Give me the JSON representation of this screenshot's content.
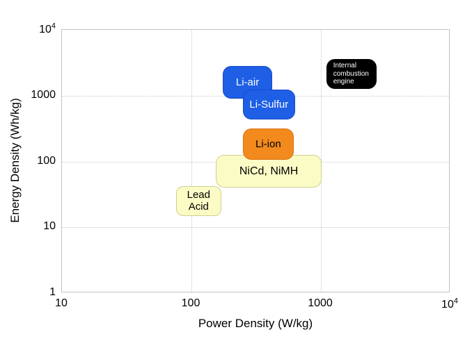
{
  "chart_data": {
    "type": "scatter",
    "subtype": "ragone-region-plot",
    "title": "",
    "xlabel": "Power Density (W/kg)",
    "ylabel": "Energy Density (Wh/kg)",
    "x_scale": "log",
    "y_scale": "log",
    "xlim": [
      10,
      10000
    ],
    "ylim": [
      1,
      10000
    ],
    "grid": "dotted",
    "legend": "none",
    "x_ticks": [
      {
        "label": "10",
        "value": 10
      },
      {
        "label": "100",
        "value": 100
      },
      {
        "label": "1000",
        "value": 1000
      },
      {
        "label": "10",
        "sup": "4",
        "value": 10000
      }
    ],
    "y_ticks": [
      {
        "label": "1",
        "value": 1
      },
      {
        "label": "10",
        "value": 10
      },
      {
        "label": "100",
        "value": 100
      },
      {
        "label": "1000",
        "value": 1000
      },
      {
        "label": "10",
        "sup": "4",
        "value": 10000
      }
    ],
    "regions": [
      {
        "id": "li-air",
        "label": "Li-air",
        "x_range": [
          175,
          420
        ],
        "y_range": [
          900,
          2800
        ],
        "fill": "#1e5fe6",
        "border": "#1848c8",
        "text_color": "#ffffff",
        "font_px": 15,
        "radius_px": 12,
        "align": "center"
      },
      {
        "id": "li-sulfur",
        "label": "Li-Sulfur",
        "x_range": [
          250,
          630
        ],
        "y_range": [
          430,
          1250
        ],
        "fill": "#1e5fe6",
        "border": "#1848c8",
        "text_color": "#ffffff",
        "font_px": 15,
        "radius_px": 12,
        "align": "center"
      },
      {
        "id": "nicd-nimh",
        "label": "NiCd, NiMH",
        "x_range": [
          155,
          1010
        ],
        "y_range": [
          40,
          125
        ],
        "fill": "#fbfbc6",
        "border": "#cfcf8f",
        "text_color": "#000000",
        "font_px": 16,
        "radius_px": 12,
        "align": "center"
      },
      {
        "id": "li-ion",
        "label": "Li-ion",
        "x_range": [
          250,
          615
        ],
        "y_range": [
          105,
          320
        ],
        "fill": "#f28a1e",
        "border": "#d9730f",
        "text_color": "#000000",
        "font_px": 15,
        "radius_px": 12,
        "align": "center"
      },
      {
        "id": "lead-acid",
        "label": "Lead\nAcid",
        "x_range": [
          76,
          170
        ],
        "y_range": [
          15,
          42
        ],
        "fill": "#fbfbc6",
        "border": "#cfcf8f",
        "text_color": "#000000",
        "font_px": 15,
        "radius_px": 10,
        "align": "center"
      },
      {
        "id": "internal-combustion-engine",
        "label": "Internal\ncombustion\nengine",
        "x_range": [
          1100,
          2700
        ],
        "y_range": [
          1270,
          3600
        ],
        "fill": "#000000",
        "border": "#000000",
        "text_color": "#ffffff",
        "font_px": 10,
        "radius_px": 12,
        "align": "left"
      }
    ],
    "colors": {
      "background": "#ffffff",
      "frame": "#bfc2c9",
      "grid": "#c9c9c9"
    }
  }
}
